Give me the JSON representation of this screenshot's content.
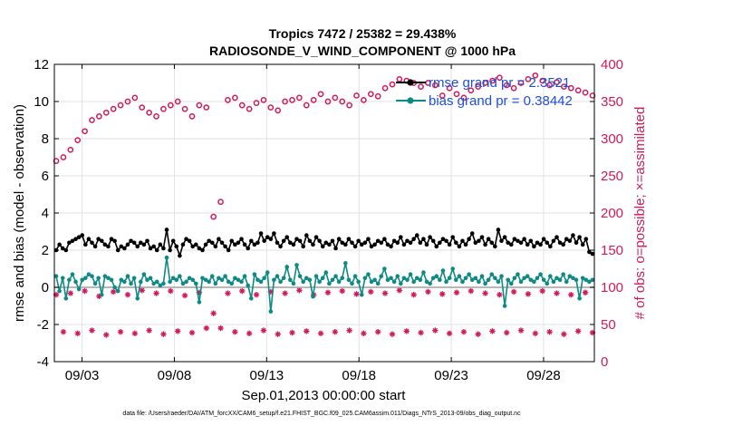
{
  "chart_data": {
    "type": "line",
    "title": "Tropics 7472 / 25382 = 29.438%",
    "subtitle": "RADIOSONDE_V_WIND_COMPONENT @ 1000 hPa",
    "xlabel": "Sep.01,2013 00:00:00 start",
    "ylabel": "rmse and bias (model - observation)",
    "y2label": "# of obs: o=possible; ×=assimilated",
    "footer": "data file: /Users/raeder/DAI/ATM_forcXX/CAM6_setup/f.e21.FHIST_BGC.f09_025.CAM6assim.011/Diags_NTrS_2013-09/obs_diag_output.nc",
    "xlim": [
      1.5,
      30.75
    ],
    "ylim": [
      -4,
      12
    ],
    "y2lim": [
      0,
      400
    ],
    "xticks": [
      3,
      8,
      13,
      18,
      23,
      28
    ],
    "xtick_labels": [
      "09/03",
      "09/08",
      "09/13",
      "09/18",
      "09/23",
      "09/28"
    ],
    "yticks": [
      -4,
      -2,
      0,
      2,
      4,
      6,
      8,
      10,
      12
    ],
    "ytick_labels": [
      "-4",
      "-2",
      "0",
      "2",
      "4",
      "6",
      "8",
      "10",
      "12"
    ],
    "y2ticks": [
      0,
      50,
      100,
      150,
      200,
      250,
      300,
      350,
      400
    ],
    "y2tick_labels": [
      "0",
      "50",
      "100",
      "150",
      "200",
      "250",
      "300",
      "350",
      "400"
    ],
    "legend_position": "top-right",
    "colors": {
      "rmse": "#000000",
      "bias": "#0e8a86",
      "obs": "#d0195a",
      "zero": "#a0a0a0"
    },
    "series": [
      {
        "name": "rmse grand pr = 2.3521",
        "axis": "left",
        "values": [
          2.0,
          2.3,
          2.1,
          2.0,
          2.4,
          2.5,
          2.6,
          2.7,
          2.8,
          2.3,
          2.6,
          2.4,
          2.2,
          2.6,
          2.5,
          2.3,
          2.2,
          2.6,
          2.5,
          2.0,
          2.2,
          2.1,
          2.3,
          2.5,
          2.4,
          2.2,
          2.4,
          2.3,
          2.5,
          2.1,
          2.2,
          2.0,
          2.3,
          2.1,
          3.1,
          2.0,
          2.5,
          2.2,
          1.7,
          2.3,
          2.6,
          2.5,
          2.2,
          2.3,
          2.1,
          2.0,
          2.3,
          2.5,
          2.4,
          2.2,
          2.6,
          2.4,
          2.2,
          2.0,
          2.5,
          2.3,
          2.4,
          2.6,
          2.3,
          2.1,
          2.5,
          2.3,
          2.4,
          2.9,
          2.5,
          2.7,
          2.6,
          2.9,
          2.4,
          2.2,
          2.5,
          2.7,
          2.4,
          2.3,
          2.6,
          2.5,
          2.2,
          2.8,
          2.5,
          2.3,
          2.7,
          2.5,
          2.2,
          2.4,
          2.3,
          2.5,
          2.1,
          2.6,
          2.4,
          2.3,
          2.6,
          2.4,
          2.2,
          2.5,
          2.3,
          2.4,
          2.6,
          2.2,
          2.3,
          2.5,
          2.4,
          2.6,
          2.3,
          2.2,
          2.5,
          2.4,
          2.7,
          2.3,
          2.5,
          2.4,
          2.6,
          2.8,
          2.4,
          2.6,
          2.3,
          2.7,
          2.5,
          2.2,
          2.4,
          2.6,
          2.5,
          2.3,
          2.7,
          2.4,
          2.2,
          2.5,
          2.3,
          2.6,
          2.9,
          2.4,
          2.5,
          2.7,
          2.3,
          2.6,
          2.4,
          2.2,
          3.1,
          2.5,
          2.7,
          2.4,
          2.3,
          2.6,
          2.5,
          2.4,
          2.6,
          2.3,
          2.5,
          2.2,
          2.4,
          2.3,
          2.6,
          2.4,
          2.2,
          2.5,
          2.7,
          2.4,
          2.3,
          2.6,
          2.5,
          2.8,
          2.4,
          2.7,
          2.3,
          2.6,
          1.9,
          1.8
        ]
      },
      {
        "name": "bias grand pr = 0.38442",
        "axis": "left",
        "values": [
          0.6,
          -0.2,
          0.5,
          -0.6,
          0.4,
          0.7,
          0.3,
          -0.1,
          0.4,
          0.5,
          0.7,
          0.6,
          0.2,
          0.5,
          -0.4,
          0.6,
          0.5,
          0.4,
          0.0,
          -0.2,
          0.4,
          0.3,
          0.6,
          0.2,
          0.5,
          -0.6,
          0.3,
          0.7,
          0.4,
          0.5,
          0.2,
          0.3,
          0.1,
          0.2,
          1.6,
          0.3,
          0.5,
          0.4,
          0.6,
          0.2,
          0.3,
          0.5,
          0.4,
          0.2,
          -0.8,
          0.5,
          0.4,
          0.3,
          0.6,
          0.2,
          0.5,
          0.4,
          0.6,
          0.3,
          0.2,
          0.5,
          0.4,
          0.3,
          0.6,
          0.1,
          -0.6,
          0.7,
          0.4,
          0.3,
          0.5,
          0.8,
          -1.3,
          0.4,
          0.6,
          0.3,
          0.5,
          1.1,
          0.4,
          0.2,
          1.2,
          0.6,
          0.3,
          0.5,
          0.4,
          -0.5,
          0.6,
          0.3,
          0.5,
          0.8,
          0.2,
          0.4,
          0.6,
          0.3,
          0.5,
          1.3,
          0.4,
          0.2,
          0.6,
          0.3,
          -0.4,
          0.5,
          0.7,
          0.3,
          0.4,
          0.2,
          0.6,
          1.0,
          0.4,
          0.5,
          0.3,
          0.6,
          0.2,
          0.5,
          0.4,
          0.7,
          0.3,
          0.5,
          0.4,
          0.8,
          0.3,
          0.2,
          0.5,
          0.6,
          0.4,
          0.9,
          0.3,
          0.5,
          1.0,
          0.4,
          0.6,
          0.3,
          0.5,
          0.7,
          0.4,
          0.5,
          0.3,
          0.6,
          0.2,
          0.4,
          0.7,
          0.5,
          0.3,
          0.6,
          -1.0,
          0.4,
          0.2,
          0.5,
          0.7,
          0.3,
          0.5,
          0.6,
          0.4,
          0.3,
          0.5,
          0.7,
          0.4,
          0.2,
          0.6,
          0.3,
          0.5,
          0.4,
          0.7,
          0.3,
          0.6,
          0.5,
          0.4,
          -0.6,
          0.5,
          0.4,
          0.3,
          0.4
        ]
      },
      {
        "name": "possible (o)",
        "axis": "right",
        "values": [
          270,
          275,
          285,
          298,
          310,
          325,
          330,
          335,
          340,
          345,
          350,
          355,
          342,
          335,
          330,
          340,
          345,
          350,
          340,
          330,
          345,
          342,
          195,
          215,
          352,
          355,
          345,
          340,
          348,
          352,
          342,
          338,
          350,
          352,
          355,
          345,
          352,
          360,
          350,
          355,
          350,
          345,
          358,
          352,
          360,
          357,
          368,
          373,
          380,
          378,
          375,
          370,
          375,
          372,
          358,
          368,
          360,
          355,
          365,
          370,
          375,
          378,
          382,
          372,
          368,
          375,
          380,
          385,
          378,
          372,
          376,
          370,
          368,
          365,
          362,
          358
        ]
      },
      {
        "name": "assimilated (×)",
        "axis": "right",
        "values": [
          90,
          40,
          92,
          38,
          95,
          42,
          88,
          36,
          94,
          40,
          90,
          38,
          96,
          42,
          92,
          37,
          95,
          41,
          89,
          39,
          93,
          45,
          65,
          45,
          92,
          40,
          95,
          38,
          90,
          42,
          94,
          37,
          92,
          39,
          96,
          41,
          90,
          38,
          93,
          40,
          95,
          42,
          91,
          38,
          94,
          40,
          92,
          37,
          96,
          41,
          90,
          39,
          94,
          42,
          91,
          38,
          93,
          40,
          95,
          37,
          92,
          41,
          90,
          39,
          94,
          42,
          91,
          38,
          95,
          40,
          92,
          37,
          90,
          41,
          93,
          39
        ]
      }
    ]
  }
}
